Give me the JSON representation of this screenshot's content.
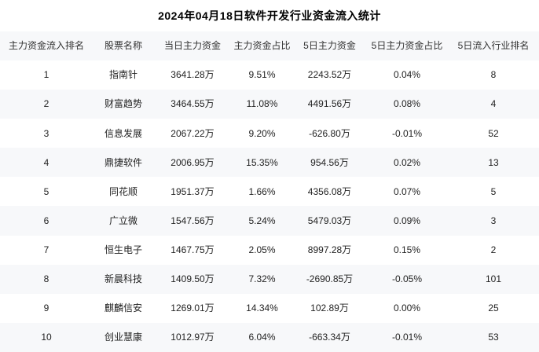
{
  "page": {
    "title": "2024年04月18日软件开发行业资金流入统计"
  },
  "colors": {
    "page_bg": "#ffffff",
    "header_bg": "#f7f8fa",
    "row_alt_bg": "#f7f8fa",
    "text": "#222222",
    "title_text": "#000000"
  },
  "chart_data": {
    "type": "table",
    "title": "2024年04月18日软件开发行业资金流入统计",
    "columns": [
      "主力资金流入排名",
      "股票名称",
      "当日主力资金",
      "主力资金占比",
      "5日主力资金",
      "5日主力资金占比",
      "5日流入行业排名"
    ],
    "column_keys": [
      "rank",
      "stock-name",
      "today-main-fund",
      "main-fund-ratio",
      "5day-main-fund",
      "5day-fund-ratio",
      "5day-industry-rank"
    ],
    "rows": [
      [
        "1",
        "指南针",
        "3641.28万",
        "9.51%",
        "2243.52万",
        "0.04%",
        "8"
      ],
      [
        "2",
        "财富趋势",
        "3464.55万",
        "11.08%",
        "4491.56万",
        "0.08%",
        "4"
      ],
      [
        "3",
        "信息发展",
        "2067.22万",
        "9.20%",
        "-626.80万",
        "-0.01%",
        "52"
      ],
      [
        "4",
        "鼎捷软件",
        "2006.95万",
        "15.35%",
        "954.56万",
        "0.02%",
        "13"
      ],
      [
        "5",
        "同花顺",
        "1951.37万",
        "1.66%",
        "4356.08万",
        "0.07%",
        "5"
      ],
      [
        "6",
        "广立微",
        "1547.56万",
        "5.24%",
        "5479.03万",
        "0.09%",
        "3"
      ],
      [
        "7",
        "恒生电子",
        "1467.75万",
        "2.05%",
        "8997.28万",
        "0.15%",
        "2"
      ],
      [
        "8",
        "新晨科技",
        "1409.50万",
        "7.32%",
        "-2690.85万",
        "-0.05%",
        "101"
      ],
      [
        "9",
        "麒麟信安",
        "1269.01万",
        "14.34%",
        "102.89万",
        "0.00%",
        "25"
      ],
      [
        "10",
        "创业慧康",
        "1012.97万",
        "6.04%",
        "-663.34万",
        "-0.01%",
        "53"
      ]
    ]
  }
}
